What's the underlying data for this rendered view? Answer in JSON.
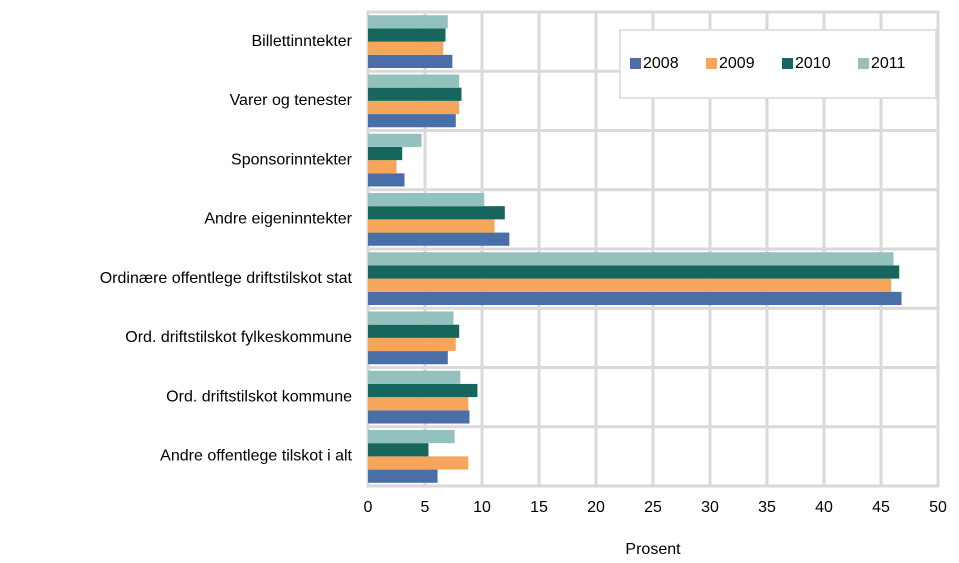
{
  "chart_data": {
    "type": "bar",
    "orientation": "horizontal",
    "categories": [
      "Billettinntekter",
      "Varer og tenester",
      "Sponsorinntekter",
      "Andre eigeninntekter",
      "Ordinære offentlege driftstilskot stat",
      "Ord. driftstilskot fylkeskommune",
      "Ord. driftstilskot kommune",
      "Andre offentlege tilskot i alt"
    ],
    "series": [
      {
        "name": "2008",
        "color": "#4a6ea8",
        "values": [
          7.4,
          7.7,
          3.2,
          12.4,
          46.8,
          7.0,
          8.9,
          6.1
        ]
      },
      {
        "name": "2009",
        "color": "#f5a65b",
        "values": [
          6.6,
          8.0,
          2.5,
          11.1,
          45.9,
          7.7,
          8.8,
          8.8
        ]
      },
      {
        "name": "2010",
        "color": "#16665e",
        "values": [
          6.8,
          8.2,
          3.0,
          12.0,
          46.6,
          8.0,
          9.6,
          5.3
        ]
      },
      {
        "name": "2011",
        "color": "#93c1be",
        "values": [
          7.0,
          8.0,
          4.7,
          10.2,
          46.1,
          7.5,
          8.1,
          7.6
        ]
      }
    ],
    "xlabel": "Prosent",
    "xlim": [
      0,
      50
    ],
    "xticks": [
      0,
      5,
      10,
      15,
      20,
      25,
      30,
      35,
      40,
      45,
      50
    ],
    "grid": true,
    "legend": "top-right"
  }
}
